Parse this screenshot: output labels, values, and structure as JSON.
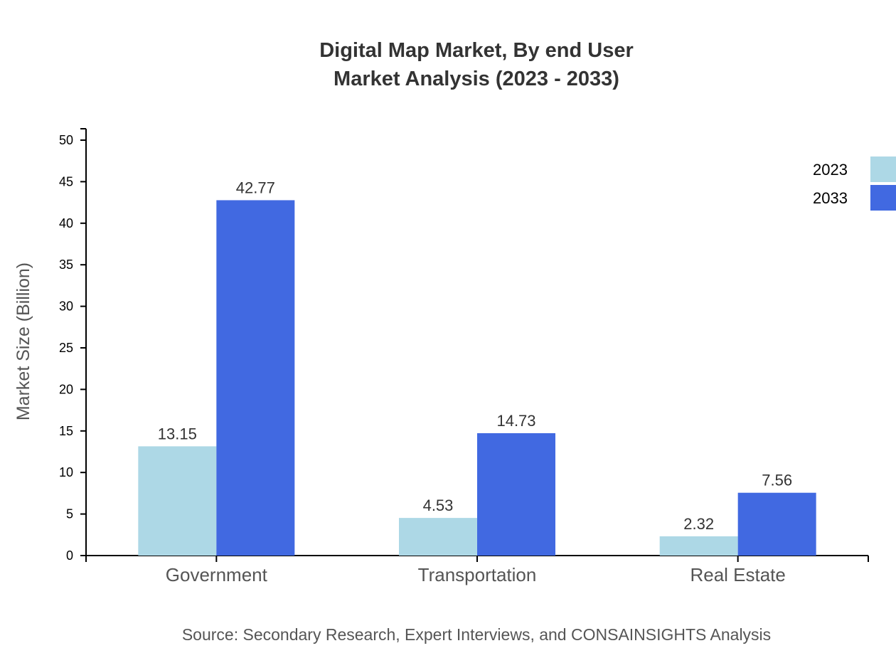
{
  "chart_data": {
    "type": "bar",
    "title": "Digital Map Market, By end User",
    "subtitle": "Market Analysis (2023 - 2033)",
    "xlabel": "",
    "ylabel": "Market Size (Billion)",
    "ylim": [
      0,
      50
    ],
    "yticks": [
      0,
      5,
      10,
      15,
      20,
      25,
      30,
      35,
      40,
      45,
      50
    ],
    "categories": [
      "Government",
      "Transportation",
      "Real Estate"
    ],
    "series": [
      {
        "name": "2023",
        "color": "#ADD8E6",
        "values": [
          13.15,
          4.53,
          2.32
        ]
      },
      {
        "name": "2033",
        "color": "#4169E1",
        "values": [
          42.77,
          14.73,
          7.56
        ]
      }
    ],
    "grid": false,
    "legend": "top-right",
    "source": "Source: Secondary Research, Expert Interviews, and CONSAINSIGHTS Analysis"
  }
}
